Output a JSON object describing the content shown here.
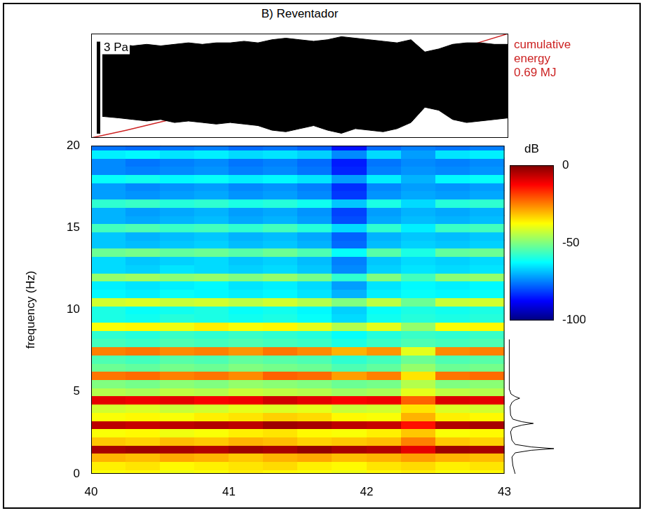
{
  "chart_data": [
    {
      "type": "envelope",
      "title": "B) Reventador",
      "x": [
        40.08,
        40.2,
        40.3,
        40.4,
        40.5,
        40.6,
        40.7,
        40.8,
        40.9,
        41.0,
        41.1,
        41.2,
        41.3,
        41.4,
        41.5,
        41.6,
        41.7,
        41.8,
        41.9,
        42.0,
        42.1,
        42.2,
        42.3,
        42.4,
        42.5,
        42.6,
        42.7,
        42.8,
        42.9,
        43.0
      ],
      "upper": [
        1.0,
        1.05,
        1.0,
        1.05,
        1.0,
        1.05,
        1.1,
        1.05,
        1.1,
        1.1,
        1.15,
        1.1,
        1.2,
        1.25,
        1.2,
        1.15,
        1.2,
        1.3,
        1.25,
        1.2,
        1.15,
        1.1,
        1.2,
        0.8,
        0.9,
        1.05,
        1.1,
        1.1,
        1.05,
        1.05
      ],
      "lower": [
        -1.3,
        -1.35,
        -1.4,
        -1.45,
        -1.4,
        -1.5,
        -1.45,
        -1.5,
        -1.55,
        -1.5,
        -1.55,
        -1.6,
        -1.75,
        -1.8,
        -1.7,
        -1.6,
        -1.75,
        -1.85,
        -1.7,
        -1.75,
        -1.8,
        -1.7,
        -1.5,
        -1.0,
        -1.1,
        -1.4,
        -1.5,
        -1.45,
        -1.4,
        -1.35
      ],
      "color": "#000000",
      "xlim": [
        40,
        43
      ],
      "ylim": [
        -2,
        1.4
      ],
      "y2lim": [
        0,
        0.69
      ],
      "tick_labels": false,
      "grid": false,
      "scale_bar": {
        "value": 3,
        "label": "3 Pa"
      },
      "energy": {
        "type": "line",
        "axis": "y2",
        "color": "#cc2222",
        "label": [
          "cumulative",
          "energy",
          "0.69 MJ"
        ],
        "x": [
          40,
          40.25,
          40.5,
          40.75,
          41,
          41.25,
          41.5,
          41.75,
          42,
          42.25,
          42.5,
          42.75,
          43
        ],
        "values": [
          0,
          0.05,
          0.105,
          0.16,
          0.215,
          0.27,
          0.325,
          0.385,
          0.455,
          0.515,
          0.56,
          0.62,
          0.69
        ]
      }
    },
    {
      "type": "heatmap",
      "ylabel": "frequency (Hz)",
      "xlim": [
        40,
        43
      ],
      "xticks": [
        40,
        41,
        42,
        43
      ],
      "ylim": [
        0,
        20
      ],
      "yticks": [
        0,
        5,
        10,
        15,
        20
      ],
      "grid": false,
      "x": [
        40.125,
        40.375,
        40.625,
        40.875,
        41.125,
        41.375,
        41.625,
        41.875,
        42.125,
        42.375,
        42.625,
        42.875
      ],
      "y": [
        0,
        0.5,
        1,
        1.5,
        2,
        2.5,
        3,
        3.5,
        4,
        4.5,
        5,
        5.5,
        6,
        6.5,
        7,
        7.5,
        8,
        8.5,
        9,
        9.5,
        10,
        10.5,
        11,
        11.5,
        12,
        12.5,
        13,
        13.5,
        14,
        14.5,
        15,
        15.5,
        16,
        16.5,
        17,
        17.5,
        18,
        18.5,
        19,
        19.5,
        20
      ],
      "cells": [
        [
          -38,
          -37,
          -39,
          -38,
          -36,
          -37,
          -38,
          -39,
          -37,
          -36,
          -38,
          -37
        ],
        [
          -36,
          -35,
          -37,
          -36,
          -35,
          -34,
          -36,
          -37,
          -35,
          -34,
          -36,
          -35
        ],
        [
          -30,
          -31,
          -29,
          -30,
          -32,
          -30,
          -29,
          -31,
          -30,
          -28,
          -30,
          -31
        ],
        [
          -4,
          -3,
          -4,
          -5,
          -3,
          -4,
          -2,
          -4,
          -5,
          -10,
          -3,
          -4
        ],
        [
          -32,
          -33,
          -31,
          -32,
          -30,
          -31,
          -33,
          -32,
          -31,
          -25,
          -32,
          -33
        ],
        [
          -38,
          -37,
          -39,
          -38,
          -36,
          -35,
          -37,
          -38,
          -36,
          -32,
          -38,
          -37
        ],
        [
          -6,
          -7,
          -6,
          -5,
          -6,
          -3,
          -4,
          -6,
          -7,
          -14,
          -5,
          -4
        ],
        [
          -38,
          -37,
          -38,
          -36,
          -35,
          -33,
          -34,
          -37,
          -38,
          -30,
          -36,
          -37
        ],
        [
          -42,
          -41,
          -43,
          -42,
          -40,
          -41,
          -40,
          -43,
          -42,
          -35,
          -41,
          -42
        ],
        [
          -10,
          -11,
          -10,
          -12,
          -11,
          -8,
          -10,
          -12,
          -11,
          -22,
          -9,
          -10
        ],
        [
          -45,
          -46,
          -44,
          -45,
          -43,
          -44,
          -45,
          -47,
          -46,
          -40,
          -44,
          -45
        ],
        [
          -50,
          -51,
          -49,
          -50,
          -48,
          -49,
          -50,
          -52,
          -51,
          -45,
          -50,
          -49
        ],
        [
          -24,
          -23,
          -25,
          -24,
          -26,
          -22,
          -23,
          -28,
          -25,
          -35,
          -24,
          -23
        ],
        [
          -52,
          -53,
          -51,
          -52,
          -50,
          -51,
          -52,
          -55,
          -53,
          -48,
          -52,
          -51
        ],
        [
          -55,
          -56,
          -54,
          -55,
          -53,
          -54,
          -55,
          -58,
          -56,
          -52,
          -55,
          -54
        ],
        [
          -25,
          -24,
          -26,
          -25,
          -27,
          -24,
          -26,
          -30,
          -27,
          -40,
          -26,
          -25
        ],
        [
          -56,
          -57,
          -55,
          -56,
          -55,
          -56,
          -57,
          -60,
          -57,
          -55,
          -56,
          -55
        ],
        [
          -58,
          -59,
          -57,
          -58,
          -57,
          -58,
          -59,
          -62,
          -59,
          -57,
          -58,
          -57
        ],
        [
          -38,
          -37,
          -39,
          -36,
          -38,
          -37,
          -40,
          -45,
          -40,
          -48,
          -38,
          -37
        ],
        [
          -60,
          -61,
          -59,
          -60,
          -61,
          -60,
          -62,
          -66,
          -61,
          -59,
          -60,
          -59
        ],
        [
          -60,
          -62,
          -61,
          -60,
          -62,
          -61,
          -63,
          -67,
          -62,
          -60,
          -61,
          -60
        ],
        [
          -42,
          -41,
          -43,
          -42,
          -44,
          -42,
          -45,
          -50,
          -44,
          -52,
          -43,
          -42
        ],
        [
          -63,
          -64,
          -62,
          -63,
          -64,
          -63,
          -65,
          -70,
          -64,
          -62,
          -63,
          -62
        ],
        [
          -64,
          -65,
          -64,
          -63,
          -65,
          -64,
          -66,
          -72,
          -65,
          -63,
          -64,
          -63
        ],
        [
          -48,
          -47,
          -49,
          -48,
          -50,
          -48,
          -51,
          -58,
          -50,
          -56,
          -49,
          -48
        ],
        [
          -66,
          -67,
          -65,
          -66,
          -67,
          -66,
          -68,
          -74,
          -67,
          -65,
          -66,
          -65
        ],
        [
          -66,
          -68,
          -67,
          -66,
          -68,
          -67,
          -69,
          -75,
          -68,
          -66,
          -67,
          -66
        ],
        [
          -52,
          -51,
          -53,
          -52,
          -54,
          -52,
          -55,
          -62,
          -54,
          -60,
          -53,
          -52
        ],
        [
          -68,
          -69,
          -68,
          -67,
          -69,
          -68,
          -70,
          -77,
          -69,
          -67,
          -68,
          -67
        ],
        [
          -68,
          -70,
          -69,
          -68,
          -70,
          -69,
          -71,
          -78,
          -70,
          -68,
          -69,
          -68
        ],
        [
          -56,
          -55,
          -57,
          -56,
          -58,
          -56,
          -59,
          -66,
          -58,
          -64,
          -57,
          -56
        ],
        [
          -70,
          -71,
          -70,
          -69,
          -71,
          -70,
          -72,
          -80,
          -71,
          -69,
          -70,
          -69
        ],
        [
          -70,
          -72,
          -71,
          -70,
          -72,
          -71,
          -73,
          -81,
          -72,
          -70,
          -71,
          -70
        ],
        [
          -58,
          -57,
          -59,
          -58,
          -60,
          -59,
          -61,
          -68,
          -60,
          -66,
          -59,
          -58
        ],
        [
          -72,
          -73,
          -72,
          -71,
          -73,
          -72,
          -74,
          -82,
          -73,
          -71,
          -72,
          -71
        ],
        [
          -72,
          -74,
          -73,
          -72,
          -74,
          -73,
          -75,
          -83,
          -74,
          -72,
          -73,
          -72
        ],
        [
          -62,
          -61,
          -63,
          -62,
          -64,
          -63,
          -65,
          -72,
          -64,
          -70,
          -63,
          -62
        ],
        [
          -74,
          -75,
          -74,
          -73,
          -75,
          -74,
          -76,
          -84,
          -75,
          -73,
          -74,
          -73
        ],
        [
          -74,
          -76,
          -75,
          -74,
          -76,
          -75,
          -77,
          -85,
          -76,
          -74,
          -75,
          -74
        ],
        [
          -64,
          -63,
          -65,
          -64,
          -66,
          -65,
          -67,
          -74,
          -66,
          -72,
          -65,
          -64
        ],
        [
          -76,
          -77,
          -76,
          -75,
          -77,
          -76,
          -78,
          -86,
          -77,
          -75,
          -76,
          -75
        ]
      ],
      "colorbar": {
        "label": "dB",
        "range": [
          -100,
          0
        ],
        "ticks": [
          0,
          -50,
          -100
        ],
        "color": "jet"
      }
    },
    {
      "type": "line",
      "orientation": "horizontal",
      "color": "#000000",
      "tick_labels": false,
      "grid": false,
      "xlim": [
        0,
        20
      ],
      "ylim": [
        0,
        1
      ],
      "x": [
        0,
        0.5,
        1.0,
        1.25,
        1.4,
        1.5,
        1.6,
        1.75,
        2.0,
        2.5,
        2.75,
        2.9,
        3.0,
        3.1,
        3.25,
        3.5,
        4.0,
        4.25,
        4.4,
        4.5,
        4.6,
        4.75,
        5.0,
        5.5,
        6.0,
        6.5,
        7.0,
        7.5,
        8.0
      ],
      "values": [
        0.15,
        0.1,
        0.08,
        0.15,
        0.5,
        1.0,
        0.5,
        0.15,
        0.08,
        0.05,
        0.1,
        0.3,
        0.55,
        0.3,
        0.1,
        0.05,
        0.04,
        0.08,
        0.15,
        0.25,
        0.15,
        0.06,
        0.03,
        0.02,
        0.03,
        0.02,
        0.02,
        0.02,
        0.02
      ]
    }
  ]
}
